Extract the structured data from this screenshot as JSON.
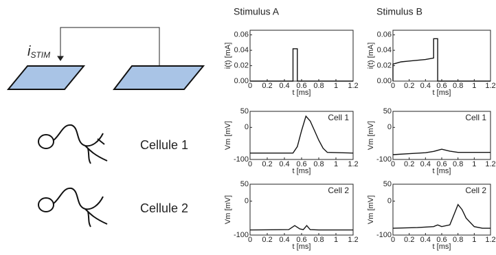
{
  "diagram": {
    "current_label": "i",
    "current_subscript": "STIM",
    "cell_1": "Cellule 1",
    "cell_2": "Cellule 2"
  },
  "chart_data": [
    {
      "type": "line",
      "title": "Stimulus A",
      "xlabel": "t [ms]",
      "ylabel": "i(t) [mA]",
      "color": "#111",
      "x": [
        0,
        0.5,
        0.5,
        0.55,
        0.55,
        1.2
      ],
      "values": [
        0,
        0,
        0.042,
        0.042,
        0,
        0
      ],
      "xlim": [
        0,
        1.2
      ],
      "xticks": [
        0,
        0.2,
        0.4,
        0.6,
        0.8,
        1,
        1.2
      ],
      "ylim": [
        0,
        0.066
      ],
      "yticks": [
        {
          "value": 0,
          "label": "0.00"
        },
        {
          "value": 0.02,
          "label": "0.02"
        },
        {
          "value": 0.04,
          "label": "0.04"
        },
        {
          "value": 0.06,
          "label": "0.06"
        }
      ]
    },
    {
      "type": "line",
      "title": "Stimulus B",
      "xlabel": "t [ms]",
      "ylabel": "i(t) [mA]",
      "color": "#111",
      "x": [
        0,
        0,
        0.1,
        0.2,
        0.3,
        0.4,
        0.5,
        0.5,
        0.55,
        0.55,
        1.2
      ],
      "values": [
        0,
        0.022,
        0.025,
        0.026,
        0.027,
        0.028,
        0.03,
        0.055,
        0.055,
        0,
        0
      ],
      "xlim": [
        0,
        1.2
      ],
      "xticks": [
        0,
        0.2,
        0.4,
        0.6,
        0.8,
        1,
        1.2
      ],
      "ylim": [
        0,
        0.066
      ],
      "yticks": [
        {
          "value": 0,
          "label": "0.00"
        },
        {
          "value": 0.02,
          "label": "0.02"
        },
        {
          "value": 0.04,
          "label": "0.04"
        },
        {
          "value": 0.06,
          "label": "0.06"
        }
      ]
    },
    {
      "type": "line",
      "annotation": "Cell 1",
      "xlabel": "t [ms]",
      "ylabel": "Vm [mV]",
      "color": "#111",
      "x": [
        0,
        0.5,
        0.55,
        0.6,
        0.65,
        0.7,
        0.75,
        0.8,
        0.85,
        0.9,
        1.2
      ],
      "values": [
        -80,
        -80,
        -60,
        -10,
        35,
        20,
        -10,
        -40,
        -65,
        -78,
        -80
      ],
      "xlim": [
        0,
        1.2
      ],
      "xticks": [
        0,
        0.2,
        0.4,
        0.6,
        0.8,
        1,
        1.2
      ],
      "ylim": [
        -100,
        50
      ],
      "yticks": [
        -100,
        0,
        50
      ]
    },
    {
      "type": "line",
      "annotation": "Cell 1",
      "xlabel": "t [ms]",
      "ylabel": "Vm [mV]",
      "color": "#111",
      "x": [
        0,
        0.2,
        0.4,
        0.5,
        0.6,
        0.7,
        0.8,
        1.0,
        1.2
      ],
      "values": [
        -85,
        -82,
        -79,
        -75,
        -68,
        -74,
        -78,
        -78,
        -78
      ],
      "xlim": [
        0,
        1.2
      ],
      "xticks": [
        0,
        0.2,
        0.4,
        0.6,
        0.8,
        1,
        1.2
      ],
      "ylim": [
        -100,
        50
      ],
      "yticks": [
        -100,
        0,
        50
      ]
    },
    {
      "type": "line",
      "annotation": "Cell 2",
      "xlabel": "t [ms]",
      "ylabel": "Vm [mV]",
      "color": "#111",
      "x": [
        0,
        0.45,
        0.52,
        0.58,
        0.62,
        0.66,
        0.7,
        0.8,
        1.2
      ],
      "values": [
        -85,
        -84,
        -72,
        -82,
        -84,
        -72,
        -84,
        -85,
        -85
      ],
      "xlim": [
        0,
        1.2
      ],
      "xticks": [
        0,
        0.2,
        0.4,
        0.6,
        0.8,
        1,
        1.2
      ],
      "ylim": [
        -100,
        50
      ],
      "yticks": [
        -100,
        0,
        50
      ]
    },
    {
      "type": "line",
      "annotation": "Cell 2",
      "xlabel": "t [ms]",
      "ylabel": "Vm [mV]",
      "color": "#111",
      "x": [
        0,
        0.3,
        0.5,
        0.55,
        0.6,
        0.7,
        0.75,
        0.8,
        0.85,
        0.9,
        1.0,
        1.1,
        1.2
      ],
      "values": [
        -80,
        -78,
        -75,
        -70,
        -75,
        -70,
        -40,
        -10,
        -25,
        -50,
        -75,
        -80,
        -80
      ],
      "xlim": [
        0,
        1.2
      ],
      "xticks": [
        0,
        0.2,
        0.4,
        0.6,
        0.8,
        1,
        1.2
      ],
      "ylim": [
        -100,
        50
      ],
      "yticks": [
        -100,
        0,
        50
      ]
    }
  ]
}
